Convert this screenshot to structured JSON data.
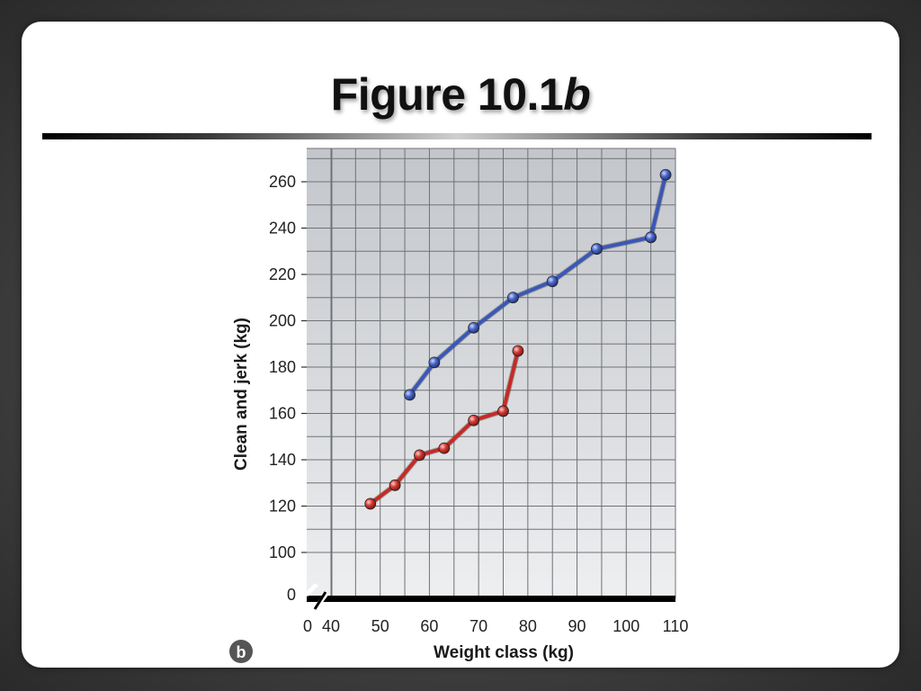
{
  "slide": {
    "title_main": "Figure 10.1",
    "title_italic": "b",
    "badge": "b"
  },
  "chart_data": {
    "type": "line",
    "xlabel": "Weight class (kg)",
    "ylabel": "Clean and jerk (kg)",
    "xlim": [
      40,
      110
    ],
    "ylim": [
      100,
      270
    ],
    "x_ticks": [
      40,
      50,
      60,
      70,
      80,
      90,
      100,
      110
    ],
    "y_ticks": [
      100,
      120,
      140,
      160,
      180,
      200,
      220,
      240,
      260
    ],
    "x_zero_label": "0",
    "y_zero_label": "0",
    "axis_break": true,
    "grid": true,
    "legend": "none",
    "series": [
      {
        "color": "#3a57b8",
        "x": [
          56,
          61,
          69,
          77,
          85,
          94,
          105,
          108
        ],
        "y": [
          168,
          182,
          197,
          210,
          217,
          231,
          236,
          263
        ]
      },
      {
        "color": "#c62a26",
        "x": [
          48,
          53,
          58,
          63,
          69,
          75,
          78
        ],
        "y": [
          121,
          129,
          142,
          145,
          157,
          161,
          187
        ]
      }
    ]
  }
}
